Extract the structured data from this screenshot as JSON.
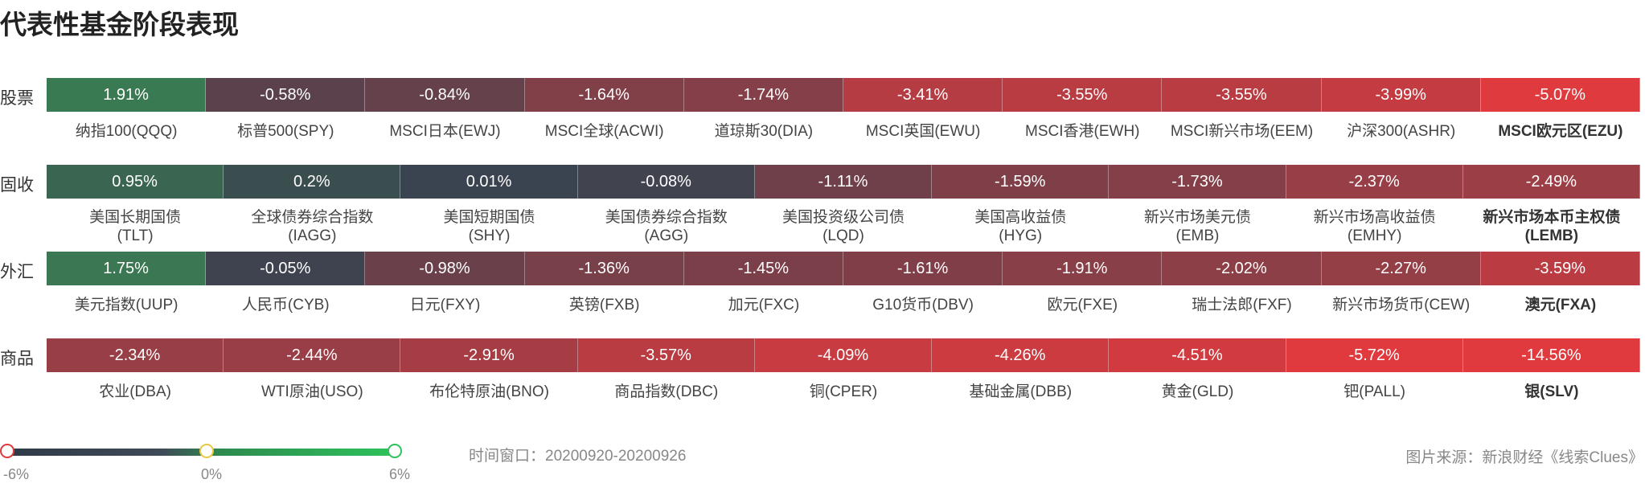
{
  "title": "代表性基金阶段表现",
  "chart_data": {
    "type": "heatmap",
    "title": "代表性基金阶段表现",
    "unit": "%",
    "rows": [
      {
        "label": "股票",
        "cells": [
          {
            "name": "纳指100(QQQ)",
            "value": 1.91,
            "display": "1.91%"
          },
          {
            "name": "标普500(SPY)",
            "value": -0.58,
            "display": "-0.58%"
          },
          {
            "name": "MSCI日本(EWJ)",
            "value": -0.84,
            "display": "-0.84%"
          },
          {
            "name": "MSCI全球(ACWI)",
            "value": -1.64,
            "display": "-1.64%"
          },
          {
            "name": "道琼斯30(DIA)",
            "value": -1.74,
            "display": "-1.74%"
          },
          {
            "name": "MSCI英国(EWU)",
            "value": -3.41,
            "display": "-3.41%"
          },
          {
            "name": "MSCI香港(EWH)",
            "value": -3.55,
            "display": "-3.55%"
          },
          {
            "name": "MSCI新兴市场(EEM)",
            "value": -3.55,
            "display": "-3.55%"
          },
          {
            "name": "沪深300(ASHR)",
            "value": -3.99,
            "display": "-3.99%"
          },
          {
            "name": "MSCI欧元区(EZU)",
            "value": -5.07,
            "display": "-5.07%"
          }
        ]
      },
      {
        "label": "固收",
        "cells": [
          {
            "name": "美国长期国债\n(TLT)",
            "value": 0.95,
            "display": "0.95%"
          },
          {
            "name": "全球债券综合指数\n(IAGG)",
            "value": 0.2,
            "display": "0.2%"
          },
          {
            "name": "美国短期国债\n(SHY)",
            "value": 0.01,
            "display": "0.01%"
          },
          {
            "name": "美国债券综合指数\n(AGG)",
            "value": -0.08,
            "display": "-0.08%"
          },
          {
            "name": "美国投资级公司债\n(LQD)",
            "value": -1.11,
            "display": "-1.11%"
          },
          {
            "name": "美国高收益债\n(HYG)",
            "value": -1.59,
            "display": "-1.59%"
          },
          {
            "name": "新兴市场美元债\n(EMB)",
            "value": -1.73,
            "display": "-1.73%"
          },
          {
            "name": "新兴市场高收益债\n(EMHY)",
            "value": -2.37,
            "display": "-2.37%"
          },
          {
            "name": "新兴市场本币主权债\n(LEMB)",
            "value": -2.49,
            "display": "-2.49%"
          }
        ]
      },
      {
        "label": "外汇",
        "cells": [
          {
            "name": "美元指数(UUP)",
            "value": 1.75,
            "display": "1.75%"
          },
          {
            "name": "人民币(CYB)",
            "value": -0.05,
            "display": "-0.05%"
          },
          {
            "name": "日元(FXY)",
            "value": -0.98,
            "display": "-0.98%"
          },
          {
            "name": "英镑(FXB)",
            "value": -1.36,
            "display": "-1.36%"
          },
          {
            "name": "加元(FXC)",
            "value": -1.45,
            "display": "-1.45%"
          },
          {
            "name": "G10货币(DBV)",
            "value": -1.61,
            "display": "-1.61%"
          },
          {
            "name": "欧元(FXE)",
            "value": -1.91,
            "display": "-1.91%"
          },
          {
            "name": "瑞士法郎(FXF)",
            "value": -2.02,
            "display": "-2.02%"
          },
          {
            "name": "新兴市场货币(CEW)",
            "value": -2.27,
            "display": "-2.27%"
          },
          {
            "name": "澳元(FXA)",
            "value": -3.59,
            "display": "-3.59%"
          }
        ]
      },
      {
        "label": "商品",
        "cells": [
          {
            "name": "农业(DBA)",
            "value": -2.34,
            "display": "-2.34%"
          },
          {
            "name": "WTI原油(USO)",
            "value": -2.44,
            "display": "-2.44%"
          },
          {
            "name": "布伦特原油(BNO)",
            "value": -2.91,
            "display": "-2.91%"
          },
          {
            "name": "商品指数(DBC)",
            "value": -3.57,
            "display": "-3.57%"
          },
          {
            "name": "铜(CPER)",
            "value": -4.09,
            "display": "-4.09%"
          },
          {
            "name": "基础金属(DBB)",
            "value": -4.26,
            "display": "-4.26%"
          },
          {
            "name": "黄金(GLD)",
            "value": -4.51,
            "display": "-4.51%"
          },
          {
            "name": "钯(PALL)",
            "value": -5.72,
            "display": "-5.72%"
          },
          {
            "name": "银(SLV)",
            "value": -14.56,
            "display": "-14.56%"
          }
        ]
      }
    ],
    "color_scale": {
      "min": -6,
      "mid": 0,
      "max": 6,
      "min_label": "-6%",
      "mid_label": "0%",
      "max_label": "6%",
      "colors": {
        "negative": "#e03a3e",
        "neutral": "#3a4350",
        "positive": "#3a7a52"
      }
    }
  },
  "legend": {
    "min_label": "-6%",
    "mid_label": "0%",
    "max_label": "6%",
    "dot_colors": {
      "min": "#e03a3e",
      "mid": "#e8c840",
      "max": "#2ec25b"
    }
  },
  "time_window": "时间窗口：20200920-20200926",
  "source": "图片来源：新浪财经《线索Clues》"
}
